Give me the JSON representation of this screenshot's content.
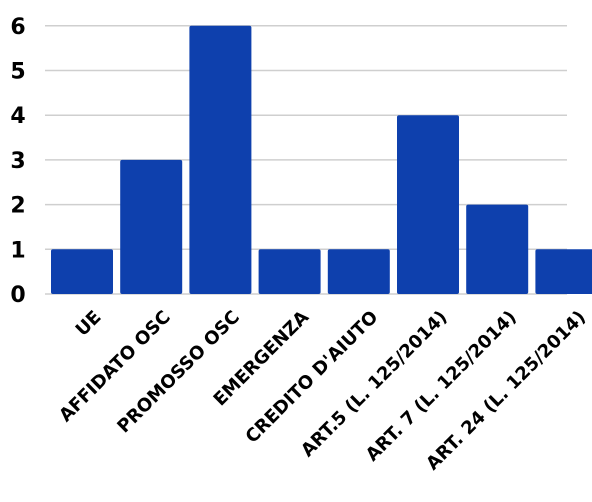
{
  "chart_data": {
    "type": "bar",
    "categories": [
      "UE",
      "AFFIDATO OSC",
      "PROMOSSO OSC",
      "EMERGENZA",
      "CREDITO D'AIUTO",
      "ART.5 (L. 125/2014)",
      "ART. 7 (L. 125/2014)",
      "ART. 24 (L. 125/2014)"
    ],
    "values": [
      1,
      3,
      6,
      1,
      1,
      4,
      2,
      1
    ],
    "title": "",
    "xlabel": "",
    "ylabel": "",
    "ylim": [
      0,
      6
    ],
    "yticks": [
      0,
      1,
      2,
      3,
      4,
      5,
      6
    ],
    "grid": true,
    "legend": "none",
    "bar_color": "#0e40ad",
    "grid_color": "#cfcfcf"
  }
}
